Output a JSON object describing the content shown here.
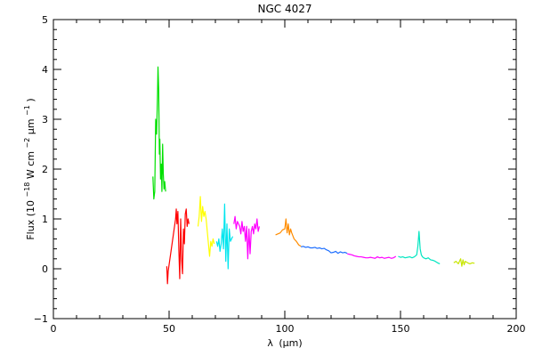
{
  "chart_data": {
    "type": "line",
    "title": "NGC 4027",
    "xlabel_parts": {
      "lambda": "λ",
      "unit": "(μm)"
    },
    "ylabel_parts": {
      "base": "Flux (10",
      "exp1": "−18",
      "mid": " W cm",
      "exp2": "−2",
      "mid2": "μm",
      "exp3": "−1",
      "end": ")"
    },
    "xlim": [
      0,
      200
    ],
    "ylim": [
      -1,
      5
    ],
    "x_ticks": [
      0,
      50,
      100,
      150,
      200
    ],
    "y_ticks": [
      -1,
      0,
      1,
      2,
      3,
      4,
      5
    ],
    "x_minor_step": 10,
    "y_minor_step": 0.2,
    "grid": false,
    "series": [
      {
        "color": "#00e000",
        "x": [
          43.0,
          43.4,
          43.8,
          44.2,
          44.6,
          45.0,
          45.2,
          45.5,
          45.8,
          46.0,
          46.3,
          46.6,
          46.9,
          47.2,
          47.5,
          47.8,
          48.1,
          48.5
        ],
        "y": [
          1.85,
          1.4,
          1.55,
          3.0,
          2.7,
          3.5,
          4.05,
          3.6,
          2.3,
          2.6,
          1.8,
          2.1,
          1.55,
          2.5,
          1.9,
          1.6,
          1.75,
          1.55
        ]
      },
      {
        "color": "#ff0000",
        "x": [
          49.0,
          49.3,
          49.6,
          52.8,
          53.1,
          53.4,
          53.8,
          54.2,
          54.6,
          55.0,
          55.4,
          55.8,
          56.2,
          56.6,
          57.0,
          57.4,
          57.8,
          58.2,
          58.6
        ],
        "y": [
          0.05,
          -0.3,
          -0.05,
          1.0,
          1.2,
          0.9,
          1.15,
          0.4,
          -0.2,
          1.0,
          0.2,
          -0.1,
          0.8,
          0.5,
          1.1,
          1.2,
          0.85,
          1.0,
          0.9
        ]
      },
      {
        "color": "#ffff00",
        "x": [
          62.5,
          63.0,
          63.5,
          64.0,
          64.5,
          65.0,
          65.5,
          66.0,
          66.5,
          67.0,
          67.5,
          68.0,
          68.5,
          69.0,
          69.5
        ],
        "y": [
          0.85,
          1.05,
          1.45,
          0.95,
          1.25,
          1.05,
          1.15,
          1.0,
          0.75,
          0.5,
          0.25,
          0.55,
          0.45,
          0.6,
          0.5
        ]
      },
      {
        "color": "#00e5ee",
        "x": [
          70.5,
          71.0,
          71.5,
          72.0,
          72.5,
          73.0,
          73.5,
          74.0,
          74.5,
          75.0,
          75.5,
          76.0,
          76.5,
          77.0,
          77.5
        ],
        "y": [
          0.55,
          0.45,
          0.6,
          0.35,
          0.5,
          0.8,
          0.4,
          1.3,
          0.15,
          0.9,
          0.0,
          0.8,
          0.55,
          0.6,
          0.65
        ]
      },
      {
        "color": "#ff00ff",
        "x": [
          78.0,
          78.5,
          79.0,
          79.5,
          80.5,
          81.0,
          81.5,
          82.0,
          82.5,
          83.0,
          83.5,
          84.0,
          84.5,
          85.0,
          85.5,
          86.0,
          86.5,
          87.0,
          87.5,
          88.0,
          88.5,
          89.0
        ],
        "y": [
          0.9,
          1.05,
          0.8,
          0.95,
          0.85,
          0.7,
          0.95,
          0.75,
          0.85,
          0.55,
          0.85,
          0.2,
          0.8,
          0.3,
          0.75,
          0.85,
          0.7,
          0.9,
          0.8,
          1.0,
          0.75,
          0.85
        ]
      },
      {
        "color": "#ff8c00",
        "x": [
          96.0,
          97.0,
          98.0,
          99.0,
          100.0,
          100.5,
          101.0,
          101.5,
          102.0,
          102.5,
          103.0,
          104.0,
          105.0,
          106.0,
          107.0
        ],
        "y": [
          0.68,
          0.7,
          0.72,
          0.78,
          0.8,
          1.0,
          0.72,
          0.9,
          0.68,
          0.8,
          0.72,
          0.6,
          0.55,
          0.48,
          0.45
        ]
      },
      {
        "color": "#1e6fff",
        "x": [
          107.0,
          108.0,
          109.0,
          110.0,
          111.0,
          112.0,
          113.0,
          114.0,
          115.0,
          116.0,
          117.0,
          118.0,
          119.0,
          120.0,
          121.0,
          122.0,
          123.0,
          124.0,
          125.0,
          126.0,
          127.0
        ],
        "y": [
          0.44,
          0.45,
          0.43,
          0.44,
          0.42,
          0.42,
          0.43,
          0.41,
          0.42,
          0.4,
          0.41,
          0.38,
          0.36,
          0.32,
          0.33,
          0.35,
          0.31,
          0.34,
          0.32,
          0.33,
          0.31
        ]
      },
      {
        "color": "#ff00ff",
        "x": [
          127.0,
          128.0,
          129.0,
          130.0,
          131.0,
          132.0,
          133.0,
          134.0,
          135.0,
          136.0,
          137.0,
          138.0,
          139.0,
          140.0,
          141.0,
          142.0,
          143.0,
          144.0,
          145.0,
          146.0,
          147.0,
          148.0
        ],
        "y": [
          0.3,
          0.29,
          0.28,
          0.26,
          0.25,
          0.24,
          0.24,
          0.23,
          0.22,
          0.22,
          0.23,
          0.22,
          0.21,
          0.24,
          0.22,
          0.23,
          0.21,
          0.22,
          0.23,
          0.21,
          0.22,
          0.25
        ]
      },
      {
        "color": "#00e5c0",
        "x": [
          149.0,
          150.0,
          151.0,
          152.0,
          153.0,
          154.0,
          155.0,
          156.0,
          157.0,
          157.5,
          158.0,
          158.5,
          159.0,
          159.5,
          160.0,
          161.0,
          162.0,
          163.0,
          164.0,
          165.0,
          166.0,
          167.0
        ],
        "y": [
          0.25,
          0.23,
          0.24,
          0.22,
          0.23,
          0.24,
          0.22,
          0.24,
          0.28,
          0.45,
          0.75,
          0.4,
          0.28,
          0.24,
          0.22,
          0.2,
          0.22,
          0.18,
          0.17,
          0.15,
          0.12,
          0.1
        ]
      },
      {
        "color": "#c8e600",
        "x": [
          173.0,
          174.0,
          175.0,
          176.0,
          176.5,
          177.0,
          177.5,
          178.0,
          179.0,
          180.0,
          181.0,
          182.0
        ],
        "y": [
          0.12,
          0.15,
          0.1,
          0.2,
          0.05,
          0.18,
          0.08,
          0.15,
          0.12,
          0.1,
          0.12,
          0.11
        ]
      }
    ]
  }
}
